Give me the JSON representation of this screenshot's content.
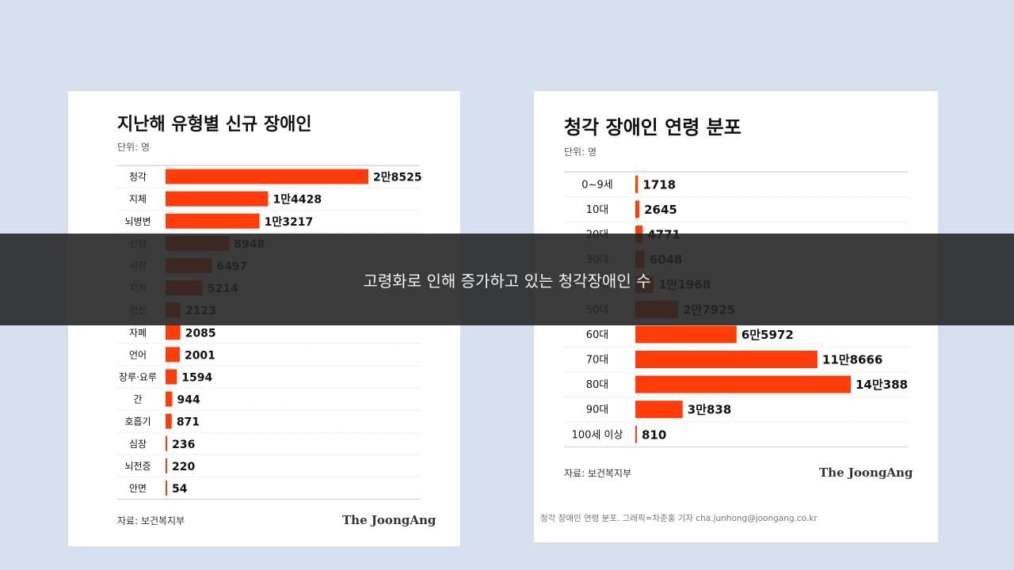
{
  "colors": {
    "background": "#d6e0ee",
    "bar": "#ff3d0a",
    "overlay": "#262626"
  },
  "chart_data": [
    {
      "type": "bar",
      "orientation": "horizontal",
      "title": "지난해 유형별 신규 장애인",
      "unit": "단위: 명",
      "categories": [
        "청각",
        "지체",
        "뇌병변",
        "신장",
        "시각",
        "지적",
        "정신",
        "자폐",
        "언어",
        "장루·요루",
        "간",
        "호흡기",
        "심장",
        "뇌전증",
        "안면"
      ],
      "values": [
        28525,
        14428,
        13217,
        8948,
        6497,
        5214,
        2123,
        2085,
        2001,
        1594,
        944,
        871,
        236,
        220,
        54
      ],
      "value_labels": [
        "2만8525",
        "1만4428",
        "1만3217",
        "8948",
        "6497",
        "5214",
        "2123",
        "2085",
        "2001",
        "1594",
        "944",
        "871",
        "236",
        "220",
        "54"
      ],
      "xlim": [
        0,
        28525
      ],
      "source": "자료: 보건복지부",
      "brand": "The JoongAng"
    },
    {
      "type": "bar",
      "orientation": "horizontal",
      "title": "청각 장애인 연령 분포",
      "unit": "단위: 명",
      "categories": [
        "0~9세",
        "10대",
        "20대",
        "30대",
        "40대",
        "50대",
        "60대",
        "70대",
        "80대",
        "90대",
        "100세 이상"
      ],
      "values": [
        1718,
        2645,
        4771,
        6048,
        11968,
        27925,
        65972,
        118666,
        140388,
        30838,
        810
      ],
      "value_labels": [
        "1718",
        "2645",
        "4771",
        "6048",
        "1만1968",
        "2만7925",
        "6만5972",
        "11만8666",
        "14만388",
        "3만838",
        "810"
      ],
      "xlim": [
        0,
        140388
      ],
      "source": "자료: 보건복지부",
      "brand": "The JoongAng",
      "caption": "청각 장애인 연령 분포. 그래픽=차준홍 기자 cha.junhong@joongang.co.kr"
    }
  ],
  "subtitle_overlay": "고령화로 인해 증가하고 있는 청각장애인 수"
}
